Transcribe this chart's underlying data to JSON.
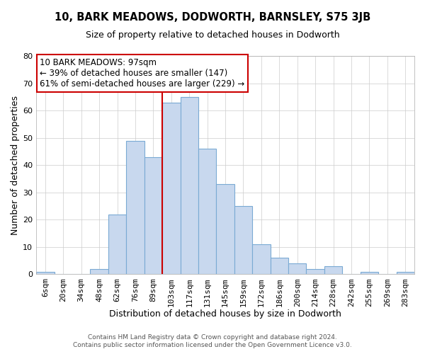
{
  "title": "10, BARK MEADOWS, DODWORTH, BARNSLEY, S75 3JB",
  "subtitle": "Size of property relative to detached houses in Dodworth",
  "xlabel": "Distribution of detached houses by size in Dodworth",
  "ylabel": "Number of detached properties",
  "footer_lines": [
    "Contains HM Land Registry data © Crown copyright and database right 2024.",
    "Contains public sector information licensed under the Open Government Licence v3.0."
  ],
  "categories": [
    "6sqm",
    "20sqm",
    "34sqm",
    "48sqm",
    "62sqm",
    "76sqm",
    "89sqm",
    "103sqm",
    "117sqm",
    "131sqm",
    "145sqm",
    "159sqm",
    "172sqm",
    "186sqm",
    "200sqm",
    "214sqm",
    "228sqm",
    "242sqm",
    "255sqm",
    "269sqm",
    "283sqm"
  ],
  "values": [
    1,
    0,
    0,
    2,
    22,
    49,
    43,
    63,
    65,
    46,
    33,
    25,
    11,
    6,
    4,
    2,
    3,
    0,
    1,
    0,
    1
  ],
  "bar_color": "#c8d8ee",
  "bar_edge_color": "#7aaad4",
  "vline_x_index": 7,
  "vline_color": "#cc0000",
  "annotation_text": "10 BARK MEADOWS: 97sqm\n← 39% of detached houses are smaller (147)\n61% of semi-detached houses are larger (229) →",
  "annotation_box_edge_color": "#cc0000",
  "ylim": [
    0,
    80
  ],
  "yticks": [
    0,
    10,
    20,
    30,
    40,
    50,
    60,
    70,
    80
  ],
  "background_color": "#ffffff",
  "grid_color": "#cccccc",
  "title_fontsize": 10.5,
  "subtitle_fontsize": 9,
  "xlabel_fontsize": 9,
  "ylabel_fontsize": 9,
  "tick_fontsize": 8,
  "annotation_fontsize": 8.5,
  "footer_fontsize": 6.5
}
